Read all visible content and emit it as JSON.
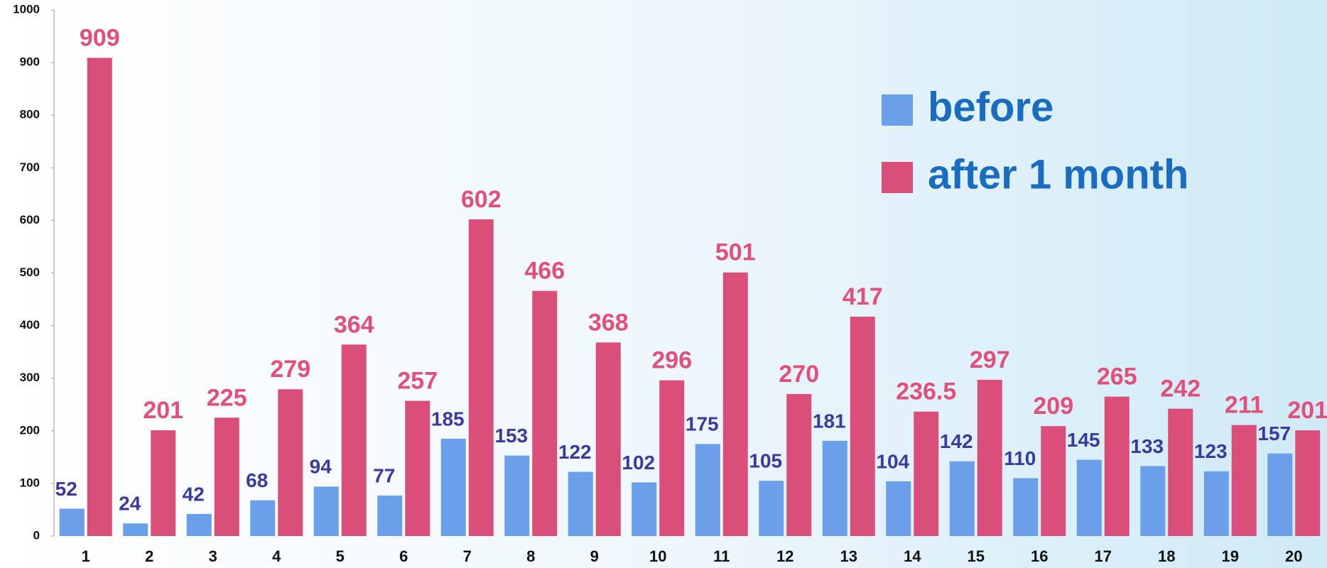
{
  "chart_data": {
    "type": "bar",
    "categories": [
      "1",
      "2",
      "3",
      "4",
      "5",
      "6",
      "7",
      "8",
      "9",
      "10",
      "11",
      "12",
      "13",
      "14",
      "15",
      "16",
      "17",
      "18",
      "19",
      "20"
    ],
    "series": [
      {
        "name": "before",
        "color": "#6a9fea",
        "values": [
          52,
          24,
          42,
          68,
          94,
          77,
          185,
          153,
          122,
          102,
          175,
          105,
          181,
          104,
          142,
          110,
          145,
          133,
          123,
          157
        ]
      },
      {
        "name": "after 1 month",
        "color": "#d94f7a",
        "values": [
          909,
          201,
          225,
          279,
          364,
          257,
          602,
          466,
          368,
          296,
          501,
          270,
          417,
          236.5,
          297,
          209,
          265,
          242,
          211,
          201
        ]
      }
    ],
    "ylim": [
      0,
      1000
    ],
    "yticks": [
      0,
      100,
      200,
      300,
      400,
      500,
      600,
      700,
      800,
      900,
      1000
    ],
    "legend": "top-right"
  }
}
